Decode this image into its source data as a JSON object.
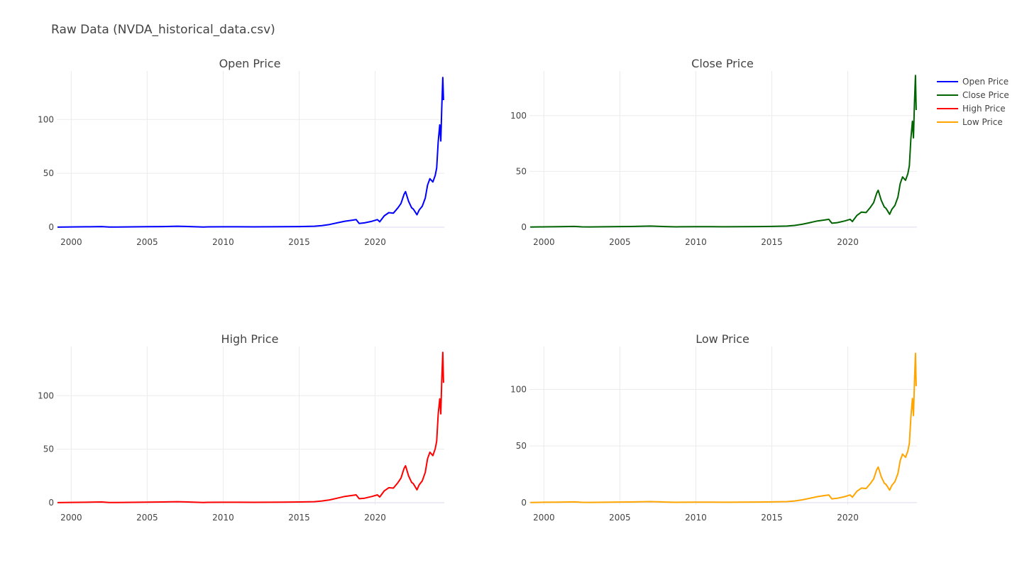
{
  "title": "Raw Data (NVDA_historical_data.csv)",
  "legend": [
    {
      "name": "Open Price",
      "color": "#0000ff"
    },
    {
      "name": "Close Price",
      "color": "#006400"
    },
    {
      "name": "High Price",
      "color": "#ff0000"
    },
    {
      "name": "Low Price",
      "color": "#ffa500"
    }
  ],
  "chart_data": [
    {
      "type": "line",
      "title": "Open Price",
      "color": "#0000ff",
      "xlim": [
        1999.05,
        2024.55
      ],
      "ylim": [
        -2,
        145
      ],
      "xticks": [
        2000,
        2005,
        2010,
        2015,
        2020
      ],
      "yticks": [
        0,
        50,
        100
      ],
      "grid": true,
      "x": [
        1999.1,
        2000.0,
        2001.0,
        2002.0,
        2002.5,
        2003.0,
        2004.0,
        2005.0,
        2006.0,
        2007.0,
        2007.5,
        2008.0,
        2008.7,
        2009.0,
        2010.0,
        2011.0,
        2012.0,
        2013.0,
        2014.0,
        2015.0,
        2016.0,
        2016.5,
        2017.0,
        2017.5,
        2018.0,
        2018.5,
        2018.75,
        2018.95,
        2019.3,
        2019.8,
        2020.15,
        2020.3,
        2020.6,
        2020.9,
        2021.2,
        2021.5,
        2021.7,
        2021.9,
        2022.0,
        2022.2,
        2022.4,
        2022.5,
        2022.6,
        2022.75,
        2022.9,
        2023.1,
        2023.3,
        2023.45,
        2023.6,
        2023.8,
        2023.95,
        2024.05,
        2024.15,
        2024.25,
        2024.32,
        2024.38,
        2024.45,
        2024.5
      ],
      "y": [
        0.05,
        0.25,
        0.4,
        0.6,
        0.2,
        0.15,
        0.3,
        0.5,
        0.6,
        0.9,
        0.7,
        0.5,
        0.2,
        0.3,
        0.4,
        0.4,
        0.3,
        0.4,
        0.5,
        0.6,
        0.9,
        1.5,
        2.5,
        4.0,
        5.5,
        6.5,
        7.0,
        3.5,
        4.0,
        5.5,
        7.0,
        5.0,
        10.5,
        13.5,
        13.0,
        18.0,
        22.0,
        30.5,
        33.0,
        24.0,
        18.0,
        17.0,
        15.0,
        11.5,
        16.0,
        19.5,
        27.0,
        39.0,
        45.0,
        42.0,
        48.0,
        55.0,
        79.0,
        95.0,
        80.0,
        110.0,
        139.0,
        118.0
      ]
    },
    {
      "type": "line",
      "title": "Close Price",
      "color": "#006400",
      "xlim": [
        1999.05,
        2024.55
      ],
      "ylim": [
        -2,
        140
      ],
      "xticks": [
        2000,
        2005,
        2010,
        2015,
        2020
      ],
      "yticks": [
        0,
        50,
        100
      ],
      "grid": true,
      "x": [
        1999.1,
        2000.0,
        2001.0,
        2002.0,
        2002.5,
        2003.0,
        2004.0,
        2005.0,
        2006.0,
        2007.0,
        2007.5,
        2008.0,
        2008.7,
        2009.0,
        2010.0,
        2011.0,
        2012.0,
        2013.0,
        2014.0,
        2015.0,
        2016.0,
        2016.5,
        2017.0,
        2017.5,
        2018.0,
        2018.5,
        2018.75,
        2018.95,
        2019.3,
        2019.8,
        2020.15,
        2020.3,
        2020.6,
        2020.9,
        2021.2,
        2021.5,
        2021.7,
        2021.9,
        2022.0,
        2022.2,
        2022.4,
        2022.5,
        2022.6,
        2022.75,
        2022.9,
        2023.1,
        2023.3,
        2023.45,
        2023.6,
        2023.8,
        2023.95,
        2024.05,
        2024.15,
        2024.25,
        2024.32,
        2024.38,
        2024.45,
        2024.5
      ],
      "y": [
        0.05,
        0.25,
        0.4,
        0.6,
        0.2,
        0.15,
        0.3,
        0.5,
        0.6,
        0.9,
        0.7,
        0.5,
        0.2,
        0.3,
        0.4,
        0.4,
        0.3,
        0.4,
        0.5,
        0.6,
        0.9,
        1.5,
        2.5,
        4.0,
        5.5,
        6.5,
        7.0,
        3.5,
        4.0,
        5.5,
        7.0,
        5.0,
        10.5,
        13.5,
        13.0,
        18.0,
        22.0,
        30.5,
        33.0,
        24.0,
        18.0,
        17.0,
        15.0,
        11.5,
        16.0,
        19.5,
        27.0,
        39.0,
        45.0,
        42.0,
        48.0,
        55.0,
        79.0,
        95.0,
        80.0,
        110.0,
        136.0,
        105.0
      ]
    },
    {
      "type": "line",
      "title": "High Price",
      "color": "#ff0000",
      "xlim": [
        1999.05,
        2024.55
      ],
      "ylim": [
        -2,
        146
      ],
      "xticks": [
        2000,
        2005,
        2010,
        2015,
        2020
      ],
      "yticks": [
        0,
        50,
        100
      ],
      "grid": true,
      "x": [
        1999.1,
        2000.0,
        2001.0,
        2002.0,
        2002.5,
        2003.0,
        2004.0,
        2005.0,
        2006.0,
        2007.0,
        2007.5,
        2008.0,
        2008.7,
        2009.0,
        2010.0,
        2011.0,
        2012.0,
        2013.0,
        2014.0,
        2015.0,
        2016.0,
        2016.5,
        2017.0,
        2017.5,
        2018.0,
        2018.5,
        2018.75,
        2018.95,
        2019.3,
        2019.8,
        2020.15,
        2020.3,
        2020.6,
        2020.9,
        2021.2,
        2021.5,
        2021.7,
        2021.9,
        2022.0,
        2022.2,
        2022.4,
        2022.5,
        2022.6,
        2022.75,
        2022.9,
        2023.1,
        2023.3,
        2023.45,
        2023.6,
        2023.8,
        2023.95,
        2024.05,
        2024.15,
        2024.25,
        2024.32,
        2024.38,
        2024.45,
        2024.5
      ],
      "y": [
        0.05,
        0.27,
        0.42,
        0.63,
        0.22,
        0.16,
        0.32,
        0.52,
        0.63,
        0.95,
        0.74,
        0.53,
        0.22,
        0.32,
        0.42,
        0.42,
        0.32,
        0.42,
        0.53,
        0.63,
        0.95,
        1.6,
        2.6,
        4.2,
        5.8,
        6.8,
        7.3,
        3.7,
        4.2,
        5.8,
        7.3,
        5.3,
        11.0,
        14.0,
        13.6,
        18.8,
        23.0,
        32.0,
        34.5,
        25.0,
        19.0,
        18.0,
        15.8,
        12.0,
        16.8,
        20.4,
        28.3,
        41.0,
        47.2,
        44.0,
        50.3,
        57.5,
        82.5,
        97.0,
        83.0,
        114.0,
        140.5,
        112.0
      ]
    },
    {
      "type": "line",
      "title": "Low Price",
      "color": "#ffa500",
      "xlim": [
        1999.05,
        2024.55
      ],
      "ylim": [
        -2,
        138
      ],
      "xticks": [
        2000,
        2005,
        2010,
        2015,
        2020
      ],
      "yticks": [
        0,
        50,
        100
      ],
      "grid": true,
      "x": [
        1999.1,
        2000.0,
        2001.0,
        2002.0,
        2002.5,
        2003.0,
        2004.0,
        2005.0,
        2006.0,
        2007.0,
        2007.5,
        2008.0,
        2008.7,
        2009.0,
        2010.0,
        2011.0,
        2012.0,
        2013.0,
        2014.0,
        2015.0,
        2016.0,
        2016.5,
        2017.0,
        2017.5,
        2018.0,
        2018.5,
        2018.75,
        2018.95,
        2019.3,
        2019.8,
        2020.15,
        2020.3,
        2020.6,
        2020.9,
        2021.2,
        2021.5,
        2021.7,
        2021.9,
        2022.0,
        2022.2,
        2022.4,
        2022.5,
        2022.6,
        2022.75,
        2022.9,
        2023.1,
        2023.3,
        2023.45,
        2023.6,
        2023.8,
        2023.95,
        2024.05,
        2024.15,
        2024.25,
        2024.32,
        2024.38,
        2024.45,
        2024.5
      ],
      "y": [
        0.04,
        0.23,
        0.38,
        0.57,
        0.19,
        0.14,
        0.28,
        0.47,
        0.57,
        0.85,
        0.66,
        0.47,
        0.19,
        0.28,
        0.38,
        0.38,
        0.28,
        0.38,
        0.47,
        0.57,
        0.85,
        1.4,
        2.4,
        3.8,
        5.2,
        6.2,
        6.7,
        3.3,
        3.8,
        5.2,
        6.7,
        4.7,
        10.0,
        12.8,
        12.4,
        17.1,
        20.9,
        29.0,
        31.4,
        22.8,
        17.1,
        16.2,
        14.3,
        11.0,
        15.2,
        18.5,
        25.7,
        37.1,
        42.8,
        40.0,
        45.6,
        52.3,
        75.0,
        92.0,
        77.0,
        105.0,
        132.0,
        103.0
      ]
    }
  ]
}
